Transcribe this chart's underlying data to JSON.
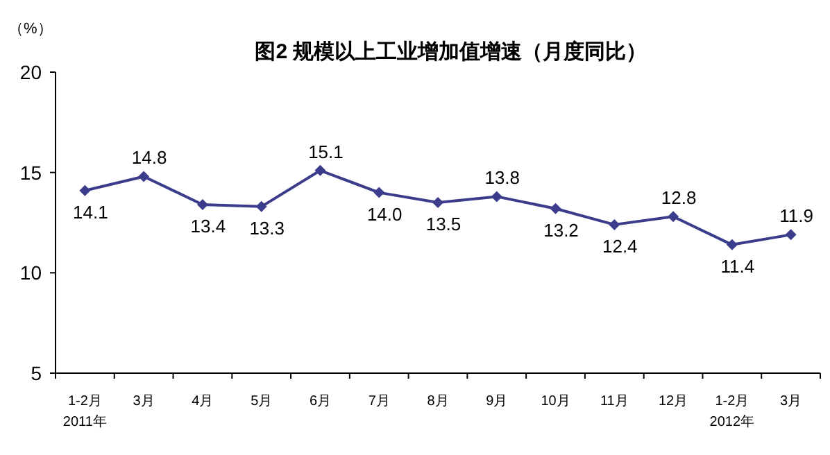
{
  "chart_data": {
    "type": "line",
    "title": "图2 规模以上工业增加值增速（月度同比）",
    "ylabel": "（%）",
    "categories": [
      "1-2月\n2011年",
      "3月",
      "4月",
      "5月",
      "6月",
      "7月",
      "8月",
      "9月",
      "10月",
      "11月",
      "12月",
      "1-2月\n2012年",
      "3月"
    ],
    "values": [
      14.1,
      14.8,
      13.4,
      13.3,
      15.1,
      14.0,
      13.5,
      13.8,
      13.2,
      12.4,
      12.8,
      11.4,
      11.9
    ],
    "value_labels": [
      "14.1",
      "14.8",
      "13.4",
      "13.3",
      "15.1",
      "14.0",
      "13.5",
      "13.8",
      "13.2",
      "12.4",
      "12.8",
      "11.4",
      "11.9"
    ],
    "color": "#3c3c8c",
    "marker": "diamond",
    "ylim": [
      5,
      20
    ],
    "yticks": [
      5,
      10,
      15,
      20
    ],
    "grid": false
  }
}
